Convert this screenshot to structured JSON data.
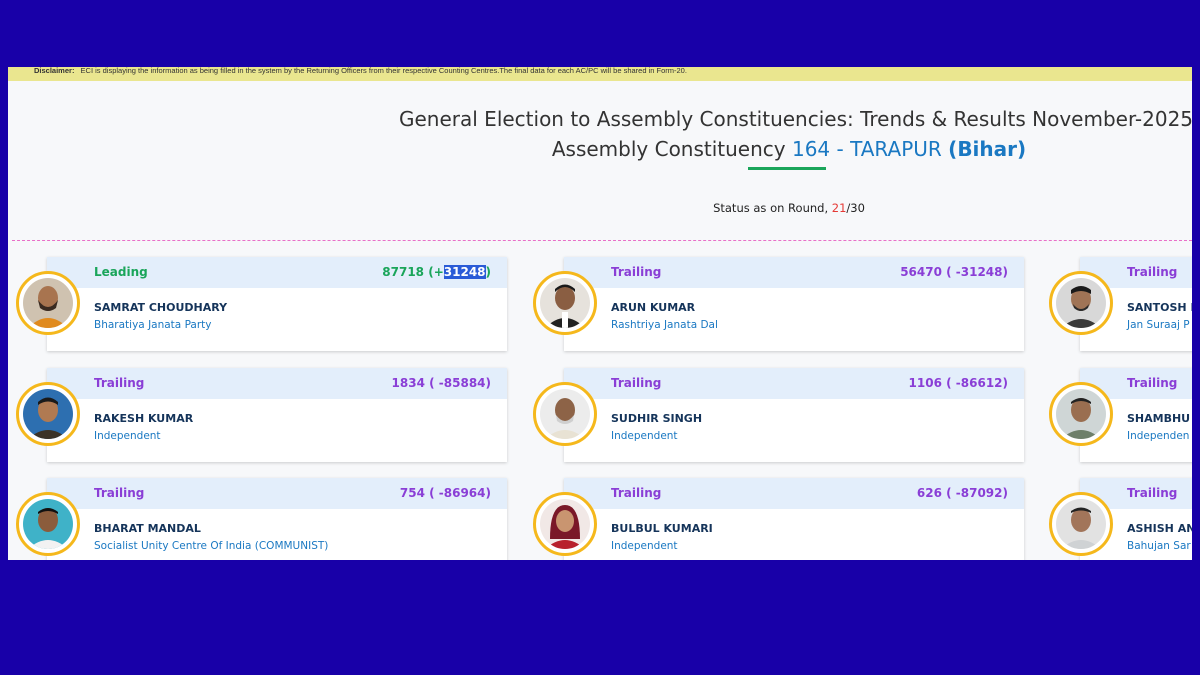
{
  "disclaimer": {
    "label": "Disclaimer:",
    "text": "ECI is displaying the information as being filled in the system by the Returning Officers from their respective Counting Centres.The final data for each AC/PC will be shared in Form-20."
  },
  "header": {
    "title": "General Election to Assembly Constituencies: Trends & Results November-2025",
    "sub_prefix": "Assembly Constituency",
    "ac": "164 - TARAPUR",
    "state": "(Bihar)"
  },
  "status": {
    "prefix": "Status as on Round,",
    "round": "21",
    "total": "/30"
  },
  "colors": {
    "leading": "#1aa55a",
    "trailing": "#8a3ed6",
    "accent": "#1a78c2",
    "avatar_ring": "#f5b81c"
  },
  "candidates": [
    {
      "status": "Leading",
      "votes": "87718",
      "margin_pre": "(+",
      "margin_hl": "31248",
      "margin_post": ")",
      "name": "SAMRAT CHOUDHARY",
      "party": "Bharatiya Janata Party"
    },
    {
      "status": "Trailing",
      "votes_full": "56470 ( -31248)",
      "name": "ARUN KUMAR",
      "party": "Rashtriya Janata Dal"
    },
    {
      "status": "Trailing",
      "votes_full": "",
      "name": "SANTOSH K",
      "party": "Jan Suraaj P"
    },
    {
      "status": "Trailing",
      "votes_full": "1834 ( -85884)",
      "name": "RAKESH KUMAR",
      "party": "Independent"
    },
    {
      "status": "Trailing",
      "votes_full": "1106 ( -86612)",
      "name": "SUDHIR SINGH",
      "party": "Independent"
    },
    {
      "status": "Trailing",
      "votes_full": "",
      "name": "SHAMBHU S",
      "party": "Independen"
    },
    {
      "status": "Trailing",
      "votes_full": "754 ( -86964)",
      "name": "BHARAT MANDAL",
      "party": "Socialist Unity Centre Of India (COMMUNIST)"
    },
    {
      "status": "Trailing",
      "votes_full": "626 ( -87092)",
      "name": "BULBUL KUMARI",
      "party": "Independent"
    },
    {
      "status": "Trailing",
      "votes_full": "",
      "name": "ASHISH ANA",
      "party": "Bahujan Sar"
    }
  ]
}
